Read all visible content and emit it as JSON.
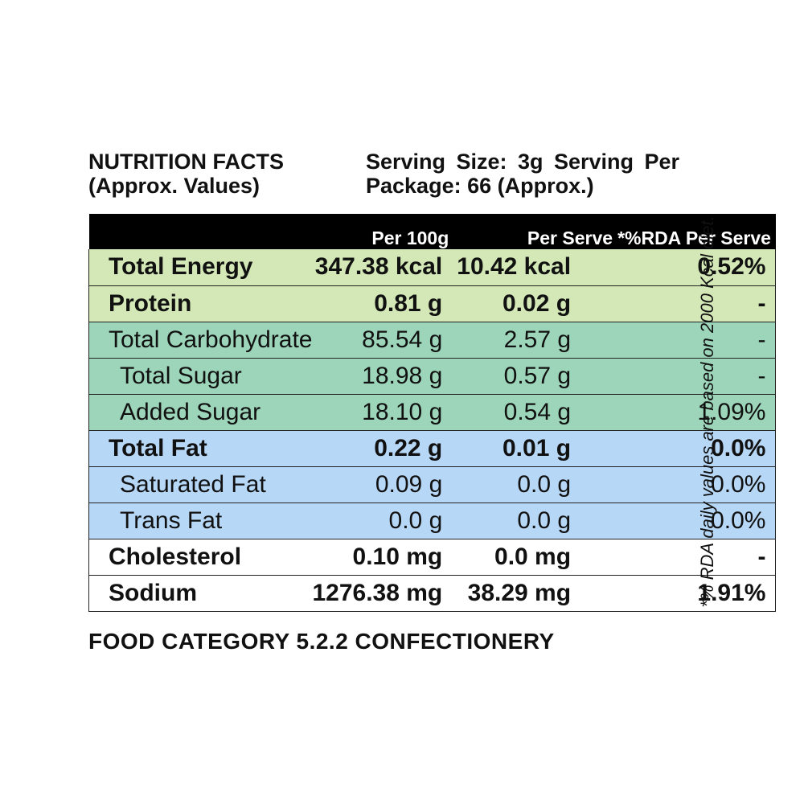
{
  "header": {
    "title_line1": "NUTRITION FACTS",
    "title_line2": "(Approx. Values)",
    "serving_line1": "Serving Size: 3g Serving Per",
    "serving_line2": "Package: 66 (Approx.)"
  },
  "table": {
    "columns": [
      "",
      "Per 100g",
      "Per Serve",
      "*%RDA Per Serve"
    ],
    "rows": [
      {
        "name": "Total Energy",
        "per_100g": "347.38 kcal",
        "per_serve": "10.42 kcal",
        "rda": "0.52%"
      },
      {
        "name": "Protein",
        "per_100g": "0.81 g",
        "per_serve": "0.02 g",
        "rda": "-"
      },
      {
        "name": "Total Carbohydrate",
        "per_100g": "85.54 g",
        "per_serve": "2.57 g",
        "rda": "-"
      },
      {
        "name": "Total Sugar",
        "per_100g": "18.98 g",
        "per_serve": "0.57 g",
        "rda": "-"
      },
      {
        "name": "Added Sugar",
        "per_100g": "18.10 g",
        "per_serve": "0.54 g",
        "rda": "1.09%"
      },
      {
        "name": "Total Fat",
        "per_100g": "0.22 g",
        "per_serve": "0.01 g",
        "rda": "0.0%"
      },
      {
        "name": "Saturated Fat",
        "per_100g": "0.09 g",
        "per_serve": "0.0 g",
        "rda": "0.0%"
      },
      {
        "name": "Trans Fat",
        "per_100g": "0.0 g",
        "per_serve": "0.0 g",
        "rda": "0.0%"
      },
      {
        "name": "Cholesterol",
        "per_100g": "0.10 mg",
        "per_serve": "0.0 mg",
        "rda": "-"
      },
      {
        "name": "Sodium",
        "per_100g": "1276.38 mg",
        "per_serve": "38.29 mg",
        "rda": "1.91%"
      }
    ]
  },
  "footer": {
    "category": "FOOD CATEGORY 5.2.2 CONFECTIONERY"
  },
  "note": {
    "rda_note": "*% RDA daily values are based on 2000 Kcal diet."
  },
  "colors": {
    "header_bg": "#000000",
    "energy_protein_bg": "#d3e8b6",
    "carbohydrate_bg": "#9cd5b9",
    "fat_bg": "#b7d7f6",
    "other_bg": "#ffffff"
  }
}
